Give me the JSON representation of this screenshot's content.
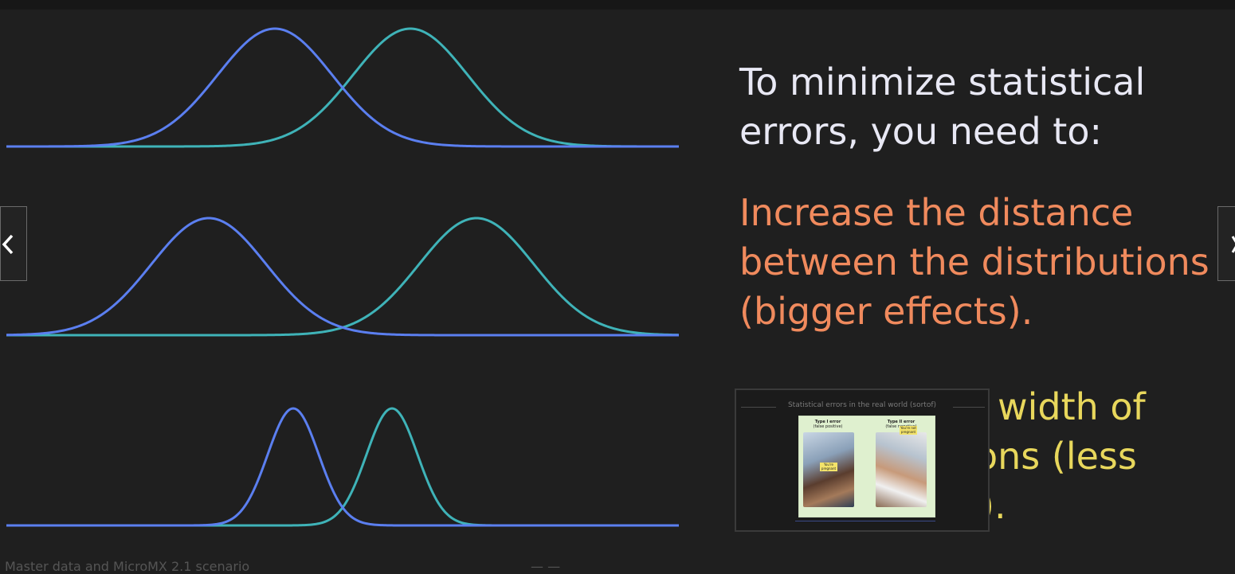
{
  "slide": {
    "heading": "To minimize statistical errors, you need to:",
    "point1": "Increase the distance between the distributions (bigger effects).",
    "point2": "width of ons (less )."
  },
  "colors": {
    "background": "#1f1f1f",
    "distribution_a": "#5b7ff0",
    "distribution_b": "#3fb3b8",
    "heading": "#e8e8f4",
    "point1": "#f08a5d",
    "point2": "#e8d75c"
  },
  "nav": {
    "prev_icon": "chevron-left-icon",
    "next_icon": "chevron-right-icon"
  },
  "thumbnail": {
    "title": "Statistical errors in the real world (sortof)",
    "col1_title": "Type I error",
    "col1_sub": "(false positive)",
    "col2_title": "Type II error",
    "col2_sub": "(false negative)",
    "note1": "You're pregnant",
    "note2": "You're not pregnant"
  },
  "footer": {
    "caption": "Master data and MicroMX 2.1 scenario",
    "page": "— —"
  },
  "curves": [
    {
      "name": "wide-overlap",
      "a_mean": 345,
      "b_mean": 515,
      "sd": 72,
      "baseline": 184,
      "peak": 148
    },
    {
      "name": "far-apart",
      "a_mean": 262,
      "b_mean": 598,
      "sd": 72,
      "baseline": 421,
      "peak": 147
    },
    {
      "name": "narrow",
      "a_mean": 368,
      "b_mean": 492,
      "sd": 32,
      "baseline": 660,
      "peak": 147
    }
  ]
}
